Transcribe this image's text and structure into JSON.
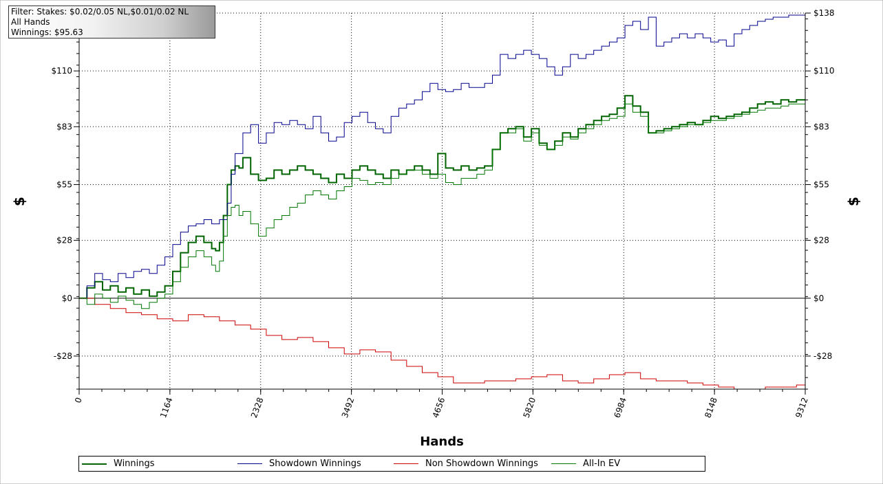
{
  "filter": {
    "lines": [
      "Filter: Stakes: $0.02/0.05 NL,$0.01/0.02 NL",
      "All Hands",
      "Winnings: $95.63"
    ]
  },
  "chart_data": {
    "type": "line",
    "xlabel": "Hands",
    "ylabel": "$",
    "xlim": [
      0,
      9312
    ],
    "ylim": [
      -44,
      138
    ],
    "x_ticks": [
      0,
      1164,
      2328,
      3492,
      4656,
      5820,
      6984,
      8148,
      9312
    ],
    "y_ticks": [
      -28,
      0,
      28,
      55,
      83,
      110,
      138
    ],
    "y_tick_labels": [
      "-$28",
      "$0",
      "$28",
      "$55",
      "$83",
      "$110",
      "$138"
    ],
    "grid": true,
    "legend_position": "bottom",
    "series": [
      {
        "name": "Winnings",
        "color": "#006400",
        "x": [
          0,
          100,
          200,
          300,
          400,
          500,
          600,
          700,
          800,
          900,
          1000,
          1100,
          1200,
          1300,
          1400,
          1500,
          1600,
          1700,
          1750,
          1800,
          1850,
          1900,
          1950,
          2000,
          2050,
          2100,
          2200,
          2300,
          2400,
          2500,
          2600,
          2700,
          2800,
          2900,
          3000,
          3100,
          3200,
          3300,
          3400,
          3500,
          3600,
          3700,
          3800,
          3900,
          4000,
          4100,
          4200,
          4300,
          4400,
          4500,
          4600,
          4700,
          4800,
          4900,
          5000,
          5100,
          5200,
          5300,
          5400,
          5500,
          5600,
          5700,
          5800,
          5900,
          6000,
          6100,
          6200,
          6300,
          6400,
          6500,
          6600,
          6700,
          6800,
          6900,
          7000,
          7100,
          7200,
          7300,
          7400,
          7500,
          7600,
          7700,
          7800,
          7900,
          8000,
          8100,
          8200,
          8300,
          8400,
          8500,
          8600,
          8700,
          8800,
          8900,
          9000,
          9100,
          9200,
          9312
        ],
        "values": [
          0,
          5,
          8,
          4,
          6,
          3,
          5,
          2,
          4,
          1,
          3,
          6,
          13,
          22,
          27,
          30,
          27,
          24,
          23,
          27,
          40,
          55,
          62,
          64,
          63,
          68,
          60,
          57,
          58,
          62,
          60,
          62,
          64,
          62,
          60,
          58,
          56,
          60,
          58,
          62,
          64,
          62,
          60,
          58,
          62,
          60,
          62,
          64,
          62,
          60,
          70,
          63,
          62,
          64,
          62,
          63,
          64,
          72,
          80,
          82,
          83,
          78,
          82,
          75,
          72,
          76,
          80,
          78,
          82,
          84,
          86,
          88,
          89,
          92,
          98,
          93,
          90,
          80,
          81,
          82,
          83,
          84,
          85,
          84,
          86,
          88,
          87,
          88,
          89,
          90,
          92,
          94,
          95,
          94,
          96,
          95,
          96,
          96
        ]
      },
      {
        "name": "Showdown Winnings",
        "color": "#00008B",
        "x": [
          0,
          100,
          200,
          300,
          400,
          500,
          600,
          700,
          800,
          900,
          1000,
          1100,
          1200,
          1300,
          1400,
          1500,
          1600,
          1700,
          1800,
          1900,
          1950,
          2000,
          2100,
          2200,
          2300,
          2400,
          2500,
          2600,
          2700,
          2800,
          2900,
          3000,
          3100,
          3200,
          3300,
          3400,
          3500,
          3600,
          3700,
          3800,
          3900,
          4000,
          4100,
          4200,
          4300,
          4400,
          4500,
          4600,
          4700,
          4800,
          4900,
          5000,
          5100,
          5200,
          5300,
          5400,
          5500,
          5600,
          5700,
          5800,
          5900,
          6000,
          6100,
          6200,
          6300,
          6400,
          6500,
          6600,
          6700,
          6800,
          6900,
          7000,
          7100,
          7200,
          7300,
          7400,
          7500,
          7600,
          7700,
          7800,
          7900,
          8000,
          8100,
          8200,
          8300,
          8400,
          8500,
          8600,
          8700,
          8800,
          8900,
          9000,
          9100,
          9200,
          9312
        ],
        "values": [
          0,
          6,
          12,
          9,
          8,
          12,
          10,
          13,
          14,
          12,
          16,
          20,
          26,
          32,
          35,
          36,
          38,
          36,
          38,
          46,
          60,
          70,
          80,
          84,
          75,
          80,
          85,
          84,
          86,
          84,
          82,
          88,
          80,
          76,
          78,
          85,
          88,
          90,
          85,
          82,
          80,
          88,
          92,
          94,
          96,
          100,
          104,
          101,
          100,
          101,
          104,
          102,
          102,
          104,
          108,
          118,
          116,
          118,
          120,
          118,
          116,
          112,
          108,
          112,
          118,
          116,
          118,
          120,
          122,
          124,
          126,
          132,
          134,
          130,
          136,
          122,
          124,
          126,
          128,
          126,
          128,
          126,
          124,
          125,
          122,
          128,
          130,
          132,
          134,
          135,
          136,
          136,
          137,
          137,
          138
        ]
      },
      {
        "name": "Non Showdown Winnings",
        "color": "#CC0000",
        "x": [
          0,
          200,
          400,
          600,
          800,
          1000,
          1200,
          1400,
          1600,
          1800,
          2000,
          2200,
          2400,
          2600,
          2800,
          3000,
          3200,
          3400,
          3600,
          3800,
          4000,
          4200,
          4400,
          4600,
          4800,
          5000,
          5200,
          5400,
          5600,
          5800,
          6000,
          6200,
          6400,
          6600,
          6800,
          7000,
          7200,
          7400,
          7600,
          7800,
          8000,
          8200,
          8400,
          8600,
          8800,
          9000,
          9200,
          9312
        ],
        "values": [
          0,
          -3,
          -5,
          -7,
          -8,
          -10,
          -11,
          -8,
          -9,
          -11,
          -13,
          -15,
          -18,
          -20,
          -19,
          -21,
          -24,
          -27,
          -25,
          -26,
          -30,
          -33,
          -36,
          -38,
          -41,
          -41,
          -40,
          -40,
          -39,
          -38,
          -37,
          -40,
          -41,
          -39,
          -37,
          -36,
          -39,
          -40,
          -40,
          -41,
          -42,
          -43,
          -44,
          -44,
          -43,
          -43,
          -42,
          -42
        ]
      },
      {
        "name": "All-In EV",
        "color": "#007700",
        "x": [
          0,
          100,
          200,
          300,
          400,
          500,
          600,
          700,
          800,
          900,
          1000,
          1100,
          1200,
          1300,
          1400,
          1500,
          1600,
          1700,
          1750,
          1800,
          1850,
          1900,
          1950,
          2000,
          2050,
          2100,
          2200,
          2300,
          2400,
          2500,
          2600,
          2700,
          2800,
          2900,
          3000,
          3100,
          3200,
          3300,
          3400,
          3500,
          3600,
          3700,
          3800,
          3900,
          4000,
          4100,
          4200,
          4300,
          4400,
          4500,
          4600,
          4700,
          4800,
          4900,
          5000,
          5100,
          5200,
          5300,
          5400,
          5500,
          5600,
          5700,
          5800,
          5900,
          6000,
          6100,
          6200,
          6300,
          6400,
          6500,
          6600,
          6700,
          6800,
          6900,
          7000,
          7100,
          7200,
          7300,
          7400,
          7500,
          7600,
          7700,
          7800,
          7900,
          8000,
          8100,
          8200,
          8300,
          8400,
          8500,
          8600,
          8700,
          8800,
          8900,
          9000,
          9100,
          9200,
          9312
        ],
        "values": [
          0,
          -3,
          2,
          0,
          -2,
          1,
          -1,
          -3,
          -5,
          -2,
          0,
          2,
          8,
          15,
          20,
          23,
          20,
          16,
          13,
          18,
          30,
          40,
          44,
          45,
          40,
          42,
          36,
          30,
          34,
          38,
          40,
          44,
          46,
          50,
          52,
          50,
          48,
          52,
          54,
          58,
          57,
          55,
          56,
          55,
          58,
          60,
          62,
          62,
          60,
          58,
          60,
          56,
          55,
          58,
          58,
          60,
          62,
          72,
          80,
          80,
          82,
          76,
          80,
          74,
          72,
          74,
          78,
          77,
          80,
          82,
          84,
          86,
          87,
          88,
          94,
          90,
          88,
          80,
          80,
          81,
          82,
          83,
          84,
          84,
          85,
          86,
          86,
          87,
          88,
          89,
          90,
          91,
          92,
          92,
          93,
          94,
          94,
          94
        ]
      }
    ]
  }
}
